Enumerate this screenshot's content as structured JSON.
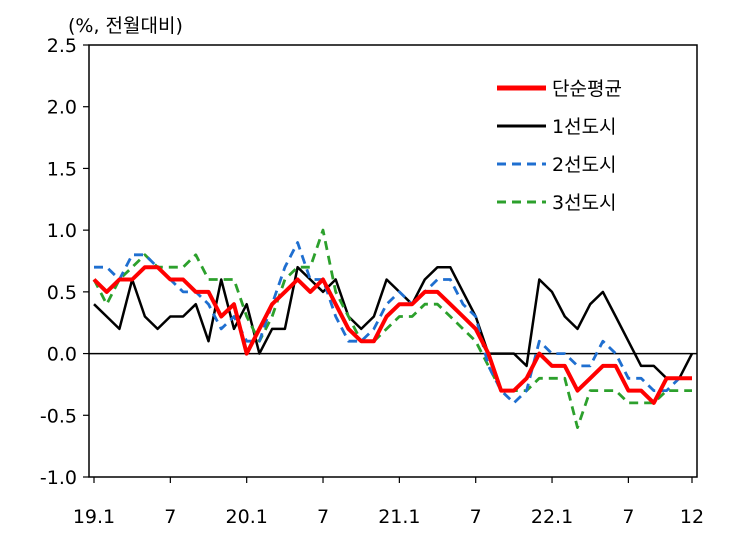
{
  "chart_data": {
    "type": "line",
    "unit_label": "(%, 전월대비)",
    "x_tick_labels": [
      "19.1",
      "7",
      "20.1",
      "7",
      "21.1",
      "7",
      "22.1",
      "7",
      "12"
    ],
    "y_tick_labels": [
      "2.5",
      "2.0",
      "1.5",
      "1.0",
      "0.5",
      "0.0",
      "-0.5",
      "-1.0"
    ],
    "ylim": [
      -1.0,
      2.5
    ],
    "x_range": [
      1,
      48
    ],
    "grid": false,
    "zero_line": true,
    "legend_position": "top-right",
    "series": [
      {
        "name": "단순평균",
        "color": "#ff0000",
        "style": "solid",
        "values": [
          0.6,
          0.5,
          0.6,
          0.6,
          0.7,
          0.7,
          0.6,
          0.6,
          0.5,
          0.5,
          0.3,
          0.4,
          0.0,
          0.2,
          0.4,
          0.5,
          0.6,
          0.5,
          0.6,
          0.4,
          0.2,
          0.1,
          0.1,
          0.3,
          0.4,
          0.4,
          0.5,
          0.5,
          0.4,
          0.3,
          0.2,
          0.0,
          -0.3,
          -0.3,
          -0.2,
          0.0,
          -0.1,
          -0.1,
          -0.3,
          -0.2,
          -0.1,
          -0.1,
          -0.3,
          -0.3,
          -0.4,
          -0.2,
          -0.2,
          -0.2
        ]
      },
      {
        "name": "1선도시",
        "color": "#000000",
        "style": "solid",
        "values": [
          0.4,
          0.3,
          0.2,
          0.6,
          0.3,
          0.2,
          0.3,
          0.3,
          0.4,
          0.1,
          0.6,
          0.2,
          0.4,
          0.0,
          0.2,
          0.2,
          0.7,
          0.6,
          0.5,
          0.6,
          0.3,
          0.2,
          0.3,
          0.6,
          0.5,
          0.4,
          0.6,
          0.7,
          0.7,
          0.5,
          0.3,
          0.0,
          0.0,
          0.0,
          -0.1,
          0.6,
          0.5,
          0.3,
          0.2,
          0.4,
          0.5,
          0.3,
          0.1,
          -0.1,
          -0.1,
          -0.2,
          -0.2,
          0.0
        ]
      },
      {
        "name": "2선도시",
        "color": "#1f6fd0",
        "style": "dashed",
        "values": [
          0.7,
          0.7,
          0.6,
          0.8,
          0.8,
          0.7,
          0.6,
          0.5,
          0.5,
          0.4,
          0.2,
          0.3,
          0.1,
          0.1,
          0.4,
          0.7,
          0.9,
          0.6,
          0.6,
          0.3,
          0.1,
          0.1,
          0.2,
          0.4,
          0.5,
          0.4,
          0.5,
          0.6,
          0.6,
          0.4,
          0.3,
          -0.1,
          -0.3,
          -0.4,
          -0.3,
          0.1,
          0.0,
          0.0,
          -0.1,
          -0.1,
          0.1,
          0.0,
          -0.2,
          -0.2,
          -0.3,
          -0.3,
          -0.2,
          -0.2
        ]
      },
      {
        "name": "3선도시",
        "color": "#2ca02c",
        "style": "dashed",
        "values": [
          0.6,
          0.4,
          0.6,
          0.7,
          0.8,
          0.7,
          0.7,
          0.7,
          0.8,
          0.6,
          0.6,
          0.6,
          0.3,
          0.1,
          0.3,
          0.6,
          0.7,
          0.7,
          1.0,
          0.5,
          0.3,
          0.1,
          0.1,
          0.2,
          0.3,
          0.3,
          0.4,
          0.4,
          0.3,
          0.2,
          0.1,
          -0.1,
          -0.3,
          -0.3,
          -0.3,
          -0.2,
          -0.2,
          -0.2,
          -0.6,
          -0.3,
          -0.3,
          -0.3,
          -0.4,
          -0.4,
          -0.4,
          -0.3,
          -0.3,
          -0.3
        ]
      }
    ]
  }
}
